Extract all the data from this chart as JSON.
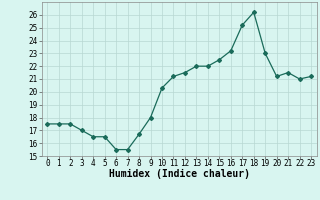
{
  "x": [
    0,
    1,
    2,
    3,
    4,
    5,
    6,
    7,
    8,
    9,
    10,
    11,
    12,
    13,
    14,
    15,
    16,
    17,
    18,
    19,
    20,
    21,
    22,
    23
  ],
  "y": [
    17.5,
    17.5,
    17.5,
    17.0,
    16.5,
    16.5,
    15.5,
    15.5,
    16.7,
    18.0,
    20.3,
    21.2,
    21.5,
    22.0,
    22.0,
    22.5,
    23.2,
    25.2,
    26.2,
    23.0,
    21.2,
    21.5,
    21.0,
    21.2
  ],
  "line_color": "#1a6b5a",
  "marker": "D",
  "marker_size": 2,
  "bg_color": "#d8f5f0",
  "grid_color": "#b8d8d2",
  "xlabel": "Humidex (Indice chaleur)",
  "ylim": [
    15,
    27
  ],
  "xlim": [
    -0.5,
    23.5
  ],
  "yticks": [
    15,
    16,
    17,
    18,
    19,
    20,
    21,
    22,
    23,
    24,
    25,
    26
  ],
  "xticks": [
    0,
    1,
    2,
    3,
    4,
    5,
    6,
    7,
    8,
    9,
    10,
    11,
    12,
    13,
    14,
    15,
    16,
    17,
    18,
    19,
    20,
    21,
    22,
    23
  ],
  "tick_fontsize": 5.5,
  "xlabel_fontsize": 7
}
